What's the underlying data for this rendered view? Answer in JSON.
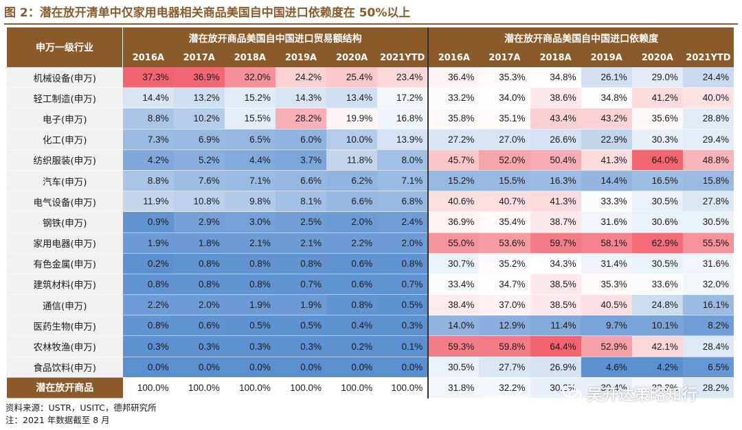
{
  "figure": {
    "title": "图 2：潜在放开清单中仅家用电器相关商品美国自中国进口依赖度在 50%以上",
    "row_header": "申万一级行业",
    "group_a_title": "潜在放开商品美国自中国进口贸易额结构",
    "group_b_title": "潜在放开商品美国自中国进口依赖度",
    "source": "资料来源：USTR，USITC，德邦研究所",
    "note": "注：2021 年数据截至 8 月",
    "watermark": "吴开达策略知行"
  },
  "colors": {
    "header_bg": "#8B5A2B",
    "title_color": "#8B5A2B",
    "row_label_bg": "#f1f1f1",
    "scale_low": "#5b8fd0",
    "scale_mid": "#ffffff",
    "scale_high": "#f26470"
  },
  "chart_data": {
    "type": "table",
    "style": "heatmap",
    "row_label_title": "申万一级行业",
    "years": [
      "2016A",
      "2017A",
      "2018A",
      "2019A",
      "2020A",
      "2021YTD"
    ],
    "groups": [
      {
        "name": "潜在放开商品美国自中国进口贸易额结构",
        "unit": "%",
        "color_range": [
          0,
          37.3
        ]
      },
      {
        "name": "潜在放开商品美国自中国进口依赖度",
        "unit": "%",
        "color_range": [
          4.2,
          64.4
        ]
      }
    ],
    "rows": [
      {
        "industry": "机械设备(申万)",
        "structure": [
          37.3,
          36.9,
          32.0,
          24.2,
          25.4,
          23.4
        ],
        "dependence": [
          36.4,
          35.3,
          34.8,
          26.1,
          29.0,
          24.4
        ]
      },
      {
        "industry": "轻工制造(申万)",
        "structure": [
          14.4,
          13.2,
          15.2,
          14.3,
          13.4,
          17.2
        ],
        "dependence": [
          33.2,
          34.0,
          38.6,
          34.8,
          41.2,
          40.0
        ]
      },
      {
        "industry": "电子(申万)",
        "structure": [
          8.8,
          10.2,
          15.5,
          28.2,
          19.9,
          16.8
        ],
        "dependence": [
          35.8,
          35.1,
          43.4,
          43.2,
          35.6,
          28.8
        ]
      },
      {
        "industry": "化工(申万)",
        "structure": [
          7.3,
          6.9,
          6.5,
          6.0,
          10.0,
          13.9
        ],
        "dependence": [
          27.2,
          27.0,
          26.6,
          22.9,
          30.3,
          29.4
        ]
      },
      {
        "industry": "纺织服装(申万)",
        "structure": [
          4.2,
          5.2,
          4.4,
          3.7,
          11.8,
          8.0
        ],
        "dependence": [
          45.7,
          52.0,
          50.4,
          41.3,
          64.0,
          48.8
        ]
      },
      {
        "industry": "汽车(申万)",
        "structure": [
          8.8,
          7.6,
          7.1,
          6.6,
          6.2,
          7.1
        ],
        "dependence": [
          15.2,
          15.5,
          16.3,
          14.4,
          16.5,
          15.8
        ]
      },
      {
        "industry": "电气设备(申万)",
        "structure": [
          11.9,
          10.8,
          9.8,
          8.1,
          6.6,
          6.8
        ],
        "dependence": [
          40.6,
          40.7,
          41.3,
          33.3,
          30.5,
          27.8
        ]
      },
      {
        "industry": "钢铁(申万)",
        "structure": [
          0.9,
          2.9,
          3.0,
          2.5,
          2.0,
          2.4
        ],
        "dependence": [
          36.9,
          35.4,
          38.7,
          31.6,
          30.6,
          30.5
        ]
      },
      {
        "industry": "家用电器(申万)",
        "structure": [
          1.9,
          1.8,
          2.1,
          2.1,
          2.2,
          2.0
        ],
        "dependence": [
          55.0,
          53.6,
          59.7,
          58.1,
          62.9,
          55.5
        ]
      },
      {
        "industry": "有色金属(申万)",
        "structure": [
          0.2,
          0.8,
          0.8,
          0.8,
          0.6,
          0.8
        ],
        "dependence": [
          30.7,
          35.2,
          34.3,
          31.4,
          30.5,
          31.6
        ]
      },
      {
        "industry": "建筑材料(申万)",
        "structure": [
          0.8,
          0.8,
          0.8,
          0.7,
          0.6,
          0.7
        ],
        "dependence": [
          33.4,
          34.7,
          38.5,
          35.3,
          33.6,
          32.0
        ]
      },
      {
        "industry": "通信(申万)",
        "structure": [
          2.2,
          2.0,
          1.9,
          1.9,
          0.8,
          0.5
        ],
        "dependence": [
          38.4,
          37.0,
          38.5,
          40.5,
          24.8,
          16.1
        ]
      },
      {
        "industry": "医药生物(申万)",
        "structure": [
          0.8,
          0.6,
          0.5,
          0.5,
          0.4,
          0.3
        ],
        "dependence": [
          14.0,
          12.9,
          11.4,
          9.7,
          10.1,
          8.2
        ]
      },
      {
        "industry": "农林牧渔(申万)",
        "structure": [
          0.3,
          0.3,
          0.3,
          0.3,
          0.2,
          0.1
        ],
        "dependence": [
          59.3,
          59.8,
          64.4,
          52.9,
          42.1,
          28.4
        ]
      },
      {
        "industry": "食品饮料(申万)",
        "structure": [
          0.0,
          0.0,
          0.0,
          0.0,
          0.0,
          0.0
        ],
        "dependence": [
          30.5,
          27.7,
          26.9,
          4.6,
          4.2,
          6.5
        ]
      }
    ],
    "total": {
      "industry": "潜在放开商品",
      "structure": [
        100.0,
        100.0,
        100.0,
        100.0,
        100.0,
        100.0
      ],
      "dependence": [
        31.8,
        32.2,
        30.2,
        30.4,
        32.3,
        28.2
      ]
    }
  }
}
